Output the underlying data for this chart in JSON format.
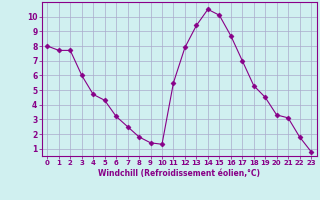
{
  "x": [
    0,
    1,
    2,
    3,
    4,
    5,
    6,
    7,
    8,
    9,
    10,
    11,
    12,
    13,
    14,
    15,
    16,
    17,
    18,
    19,
    20,
    21,
    22,
    23
  ],
  "y": [
    8.0,
    7.7,
    7.7,
    6.0,
    4.7,
    4.3,
    3.2,
    2.5,
    1.8,
    1.4,
    1.3,
    5.5,
    7.9,
    9.4,
    10.5,
    10.1,
    8.7,
    7.0,
    5.3,
    4.5,
    3.3,
    3.1,
    1.8,
    0.8
  ],
  "line_color": "#880088",
  "marker": "D",
  "marker_size": 2.5,
  "bg_color": "#d0f0f0",
  "grid_color": "#aaaacc",
  "xlabel": "Windchill (Refroidissement éolien,°C)",
  "xlim": [
    -0.5,
    23.5
  ],
  "ylim": [
    0.5,
    11.0
  ],
  "xticks": [
    0,
    1,
    2,
    3,
    4,
    5,
    6,
    7,
    8,
    9,
    10,
    11,
    12,
    13,
    14,
    15,
    16,
    17,
    18,
    19,
    20,
    21,
    22,
    23
  ],
  "yticks": [
    1,
    2,
    3,
    4,
    5,
    6,
    7,
    8,
    9,
    10
  ],
  "axis_color": "#880088",
  "tick_color": "#880088"
}
